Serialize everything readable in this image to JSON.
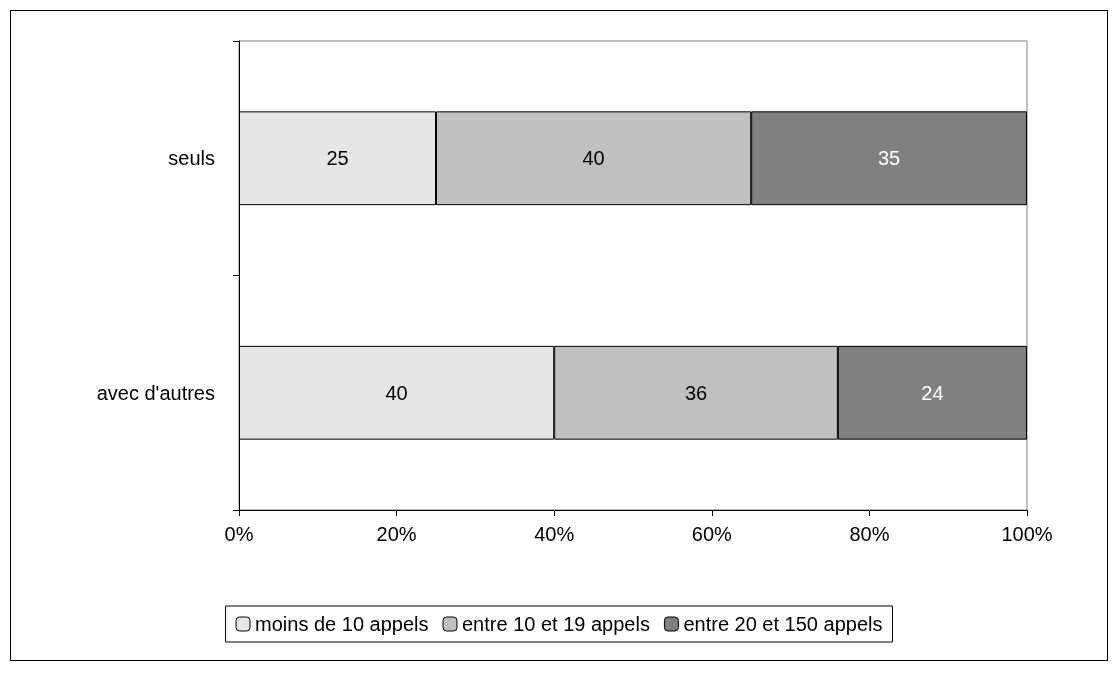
{
  "chart_data": {
    "type": "bar",
    "orientation": "horizontal",
    "stacked": true,
    "categories": [
      "seuls",
      "avec d'autres"
    ],
    "series": [
      {
        "name": "moins de 10 appels",
        "color": "#e6e6e6",
        "values": [
          25,
          40
        ]
      },
      {
        "name": "entre 10 et 19 appels",
        "color": "#c0c0c0",
        "values": [
          40,
          36
        ]
      },
      {
        "name": "entre 20 et 150 appels",
        "color": "#808080",
        "values": [
          35,
          24
        ]
      }
    ],
    "xlim": [
      0,
      100
    ],
    "xticks": [
      {
        "value": 0,
        "label": "0%"
      },
      {
        "value": 20,
        "label": "20%"
      },
      {
        "value": 40,
        "label": "40%"
      },
      {
        "value": 60,
        "label": "60%"
      },
      {
        "value": 80,
        "label": "80%"
      },
      {
        "value": 100,
        "label": "100%"
      }
    ],
    "data_labels": true,
    "legend": "bottom",
    "grid": false
  }
}
